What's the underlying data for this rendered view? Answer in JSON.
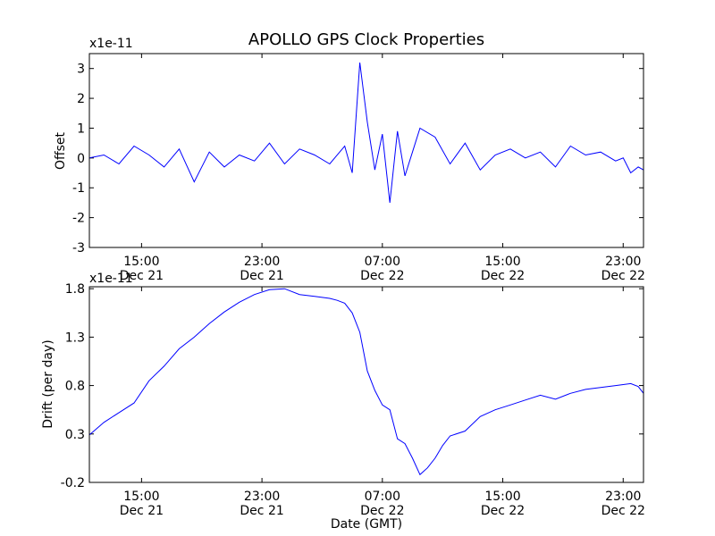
{
  "figure": {
    "title": "APOLLO GPS Clock Properties",
    "xlabel": "Date (GMT)"
  },
  "chart_data": [
    {
      "type": "line",
      "name": "offset",
      "title": "APOLLO GPS Clock Properties",
      "ylabel": "Offset",
      "scale_label": "x1e-11",
      "color": "#0000ff",
      "xlim": [
        "Dec 21 11:32",
        "Dec 23 00:21"
      ],
      "ylim": [
        -3,
        3.5
      ],
      "yticks": [
        "-3",
        "-2",
        "-1",
        "0",
        "1",
        "2",
        "3"
      ],
      "xticks": [
        {
          "time": "15:00",
          "date": "Dec 21"
        },
        {
          "time": "23:00",
          "date": "Dec 21"
        },
        {
          "time": "07:00",
          "date": "Dec 22"
        },
        {
          "time": "15:00",
          "date": "Dec 22"
        },
        {
          "time": "23:00",
          "date": "Dec 22"
        }
      ],
      "x": [
        "Dec 21 11:32",
        "Dec 21 12:30",
        "Dec 21 13:30",
        "Dec 21 14:30",
        "Dec 21 15:30",
        "Dec 21 16:30",
        "Dec 21 17:30",
        "Dec 21 18:30",
        "Dec 21 19:30",
        "Dec 21 20:30",
        "Dec 21 21:30",
        "Dec 21 22:30",
        "Dec 21 23:30",
        "Dec 22 00:30",
        "Dec 22 01:30",
        "Dec 22 02:30",
        "Dec 22 03:30",
        "Dec 22 04:30",
        "Dec 22 05:00",
        "Dec 22 05:30",
        "Dec 22 06:00",
        "Dec 22 06:30",
        "Dec 22 07:00",
        "Dec 22 07:30",
        "Dec 22 08:00",
        "Dec 22 08:30",
        "Dec 22 09:00",
        "Dec 22 09:30",
        "Dec 22 10:30",
        "Dec 22 11:30",
        "Dec 22 12:30",
        "Dec 22 13:30",
        "Dec 22 14:30",
        "Dec 22 15:30",
        "Dec 22 16:30",
        "Dec 22 17:30",
        "Dec 22 18:30",
        "Dec 22 19:30",
        "Dec 22 20:30",
        "Dec 22 21:30",
        "Dec 22 22:30",
        "Dec 22 23:00",
        "Dec 22 23:30",
        "Dec 23 00:00",
        "Dec 23 00:21"
      ],
      "y": [
        0.0,
        0.1,
        -0.2,
        0.4,
        0.1,
        -0.3,
        0.3,
        -0.8,
        0.2,
        -0.3,
        0.1,
        -0.1,
        0.5,
        -0.2,
        0.3,
        0.1,
        -0.2,
        0.4,
        -0.5,
        3.2,
        1.2,
        -0.4,
        0.8,
        -1.5,
        0.9,
        -0.6,
        0.2,
        1.0,
        0.7,
        -0.2,
        0.5,
        -0.4,
        0.1,
        0.3,
        0.0,
        0.2,
        -0.3,
        0.4,
        0.1,
        0.2,
        -0.1,
        0.0,
        -0.5,
        -0.3,
        -0.4
      ]
    },
    {
      "type": "line",
      "name": "drift",
      "ylabel": "Drift (per day)",
      "scale_label": "x1e-11",
      "color": "#0000ff",
      "xlim": [
        "Dec 21 11:32",
        "Dec 23 00:21"
      ],
      "ylim": [
        -0.2,
        1.82
      ],
      "yticks": [
        "-0.2",
        "0.3",
        "0.8",
        "1.3",
        "1.8"
      ],
      "xticks": [
        {
          "time": "15:00",
          "date": "Dec 21"
        },
        {
          "time": "23:00",
          "date": "Dec 21"
        },
        {
          "time": "07:00",
          "date": "Dec 22"
        },
        {
          "time": "15:00",
          "date": "Dec 22"
        },
        {
          "time": "23:00",
          "date": "Dec 22"
        }
      ],
      "x": [
        "Dec 21 11:32",
        "Dec 21 12:30",
        "Dec 21 13:30",
        "Dec 21 14:30",
        "Dec 21 15:30",
        "Dec 21 16:30",
        "Dec 21 17:30",
        "Dec 21 18:30",
        "Dec 21 19:30",
        "Dec 21 20:30",
        "Dec 21 21:30",
        "Dec 21 22:30",
        "Dec 21 23:30",
        "Dec 22 00:30",
        "Dec 22 01:30",
        "Dec 22 02:30",
        "Dec 22 03:30",
        "Dec 22 04:00",
        "Dec 22 04:30",
        "Dec 22 05:00",
        "Dec 22 05:30",
        "Dec 22 06:00",
        "Dec 22 06:30",
        "Dec 22 07:00",
        "Dec 22 07:30",
        "Dec 22 08:00",
        "Dec 22 08:30",
        "Dec 22 09:00",
        "Dec 22 09:30",
        "Dec 22 10:00",
        "Dec 22 10:30",
        "Dec 22 11:00",
        "Dec 22 11:30",
        "Dec 22 12:30",
        "Dec 22 13:30",
        "Dec 22 14:30",
        "Dec 22 15:30",
        "Dec 22 16:30",
        "Dec 22 17:30",
        "Dec 22 18:30",
        "Dec 22 19:30",
        "Dec 22 20:30",
        "Dec 22 21:30",
        "Dec 22 22:30",
        "Dec 22 23:00",
        "Dec 22 23:30",
        "Dec 23 00:00",
        "Dec 23 00:21"
      ],
      "y": [
        0.29,
        0.42,
        0.52,
        0.62,
        0.85,
        1.0,
        1.18,
        1.3,
        1.44,
        1.56,
        1.66,
        1.74,
        1.79,
        1.8,
        1.74,
        1.72,
        1.7,
        1.68,
        1.65,
        1.55,
        1.35,
        0.95,
        0.75,
        0.6,
        0.55,
        0.25,
        0.2,
        0.05,
        -0.12,
        -0.05,
        0.05,
        0.18,
        0.28,
        0.33,
        0.48,
        0.55,
        0.6,
        0.65,
        0.7,
        0.66,
        0.72,
        0.76,
        0.78,
        0.8,
        0.81,
        0.82,
        0.79,
        0.72
      ]
    }
  ]
}
